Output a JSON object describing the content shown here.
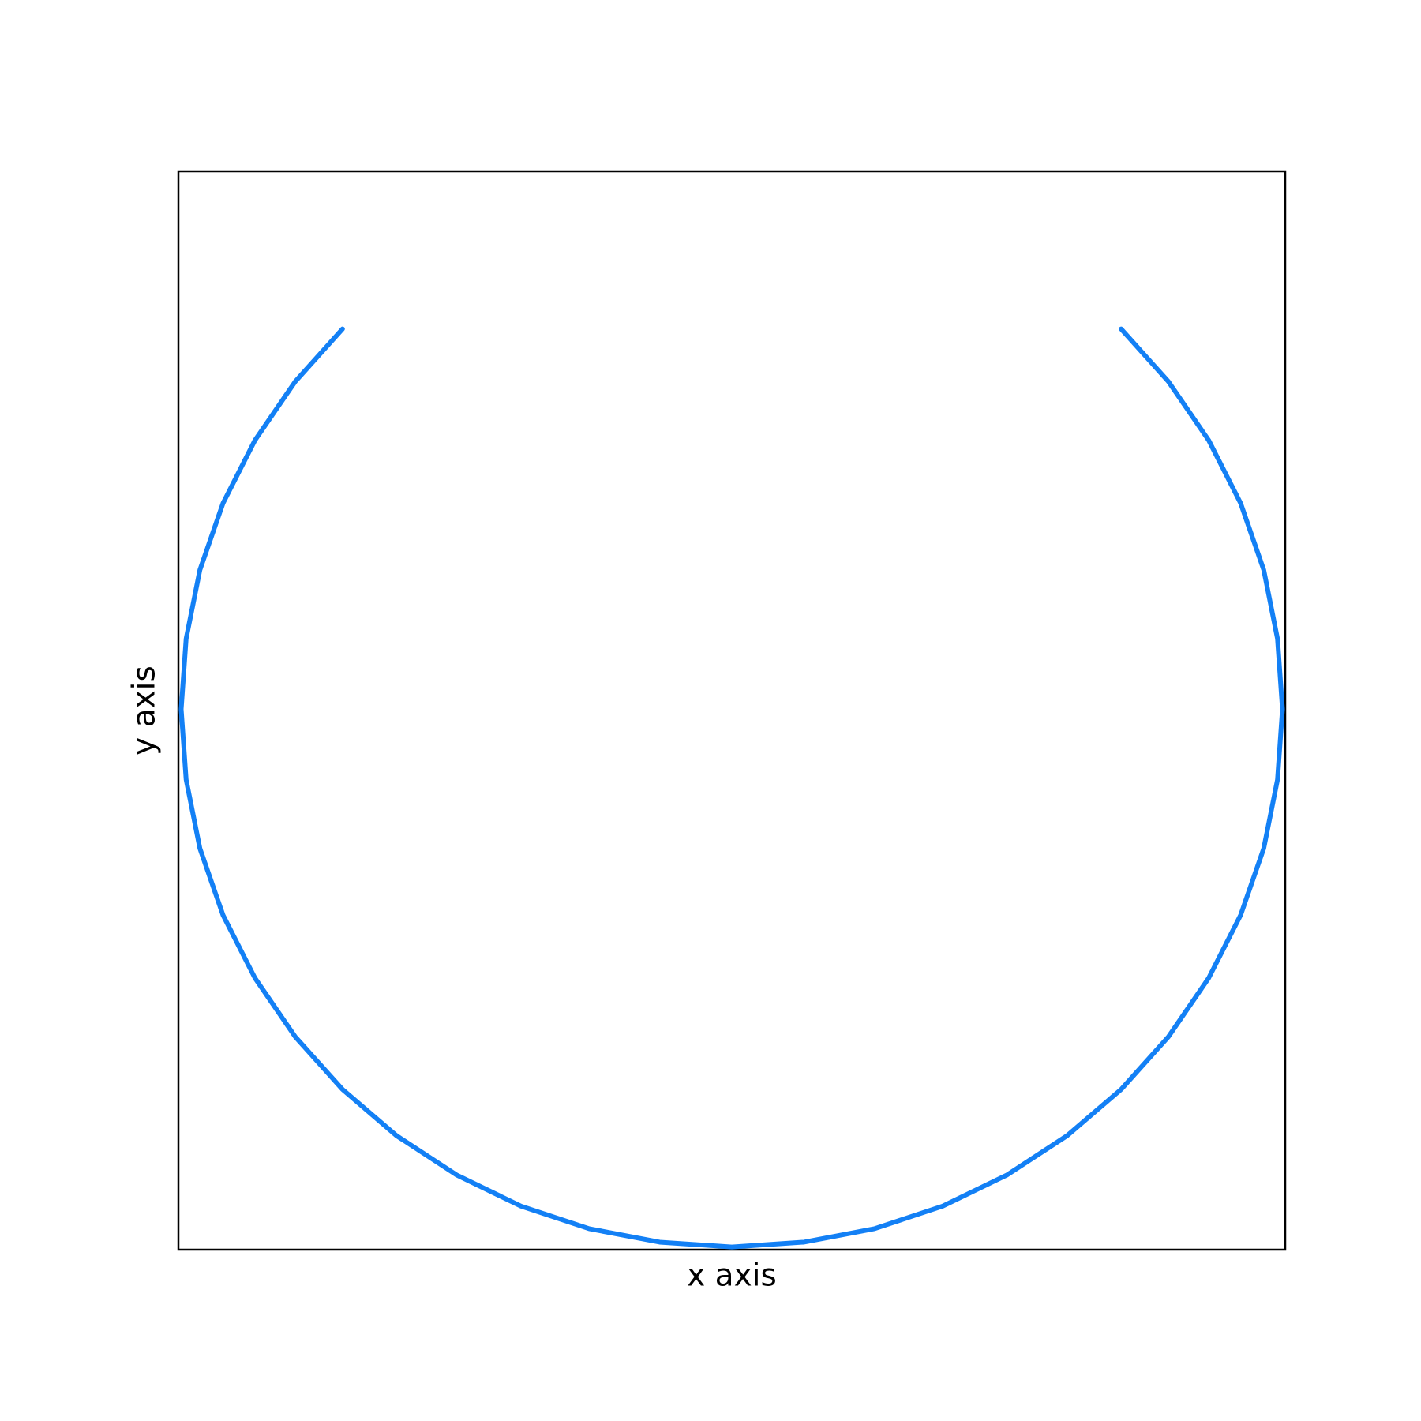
{
  "chart_data": {
    "type": "line",
    "xlabel": "x axis",
    "ylabel": "y axis",
    "color": "#1380f5",
    "xlim": [
      -1.005,
      1.005
    ],
    "ylim": [
      -1.005,
      1.0
    ],
    "x": [
      -0.707,
      -0.793,
      -0.866,
      -0.924,
      -0.966,
      -0.991,
      -1,
      -0.991,
      -0.966,
      -0.924,
      -0.866,
      -0.793,
      -0.707,
      -0.609,
      -0.5,
      -0.383,
      -0.259,
      -0.131,
      0,
      0.131,
      0.259,
      0.383,
      0.5,
      0.609,
      0.707,
      0.793,
      0.866,
      0.924,
      0.966,
      0.991,
      1,
      0.991,
      0.966,
      0.924,
      0.866,
      0.793,
      0.707
    ],
    "values": [
      0.707,
      0.609,
      0.5,
      0.383,
      0.259,
      0.131,
      0,
      -0.131,
      -0.259,
      -0.383,
      -0.5,
      -0.609,
      -0.707,
      -0.793,
      -0.866,
      -0.924,
      -0.966,
      -0.991,
      -1,
      -0.991,
      -0.966,
      -0.924,
      -0.866,
      -0.793,
      -0.707,
      -0.609,
      -0.5,
      -0.383,
      -0.259,
      -0.131,
      0,
      0.131,
      0.259,
      0.383,
      0.5,
      0.609,
      0.707
    ]
  }
}
